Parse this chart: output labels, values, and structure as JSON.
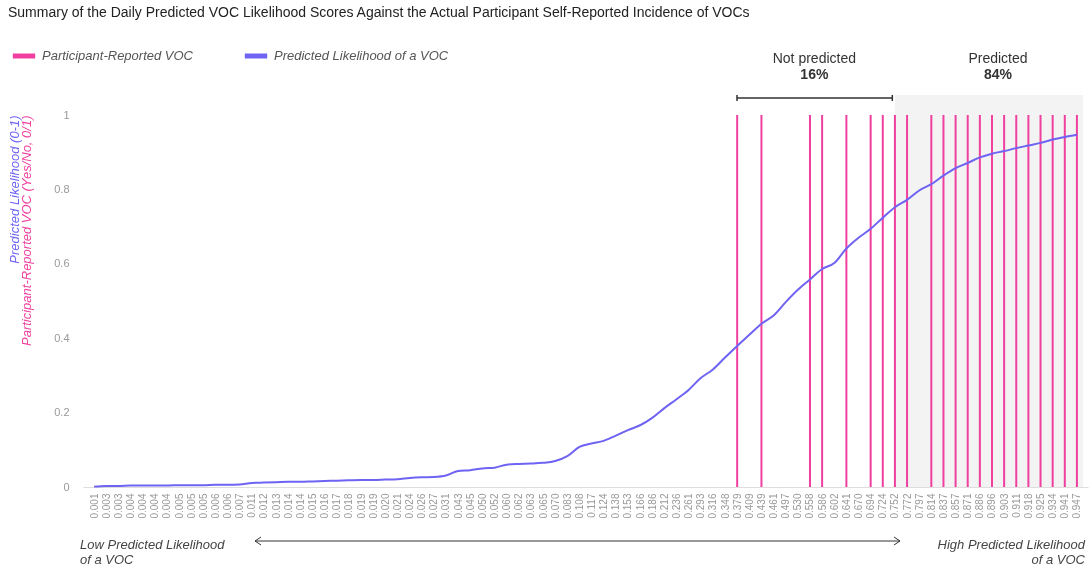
{
  "chart_data": {
    "type": "line",
    "title": "Summary of the Daily Predicted VOC Likelihood Scores Against the Actual Participant Self-Reported Incidence of VOCs",
    "ylabel": "Predicted Likelihood (0-1)",
    "y2label": "Participant-Reported VOC (Yes/No, 0/1)",
    "categories": [
      "0.001",
      "0.003",
      "0.003",
      "0.004",
      "0.004",
      "0.004",
      "0.004",
      "0.005",
      "0.005",
      "0.005",
      "0.006",
      "0.006",
      "0.007",
      "0.011",
      "0.012",
      "0.013",
      "0.014",
      "0.014",
      "0.015",
      "0.016",
      "0.017",
      "0.018",
      "0.019",
      "0.019",
      "0.020",
      "0.021",
      "0.024",
      "0.026",
      "0.027",
      "0.031",
      "0.043",
      "0.045",
      "0.050",
      "0.052",
      "0.060",
      "0.062",
      "0.063",
      "0.065",
      "0.070",
      "0.083",
      "0.108",
      "0.117",
      "0.124",
      "0.138",
      "0.153",
      "0.166",
      "0.186",
      "0.212",
      "0.236",
      "0.261",
      "0.293",
      "0.316",
      "0.348",
      "0.379",
      "0.409",
      "0.439",
      "0.461",
      "0.497",
      "0.530",
      "0.558",
      "0.586",
      "0.602",
      "0.641",
      "0.670",
      "0.694",
      "0.724",
      "0.752",
      "0.772",
      "0.797",
      "0.814",
      "0.837",
      "0.857",
      "0.871",
      "0.886",
      "0.896",
      "0.903",
      "0.911",
      "0.918",
      "0.925",
      "0.934",
      "0.941",
      "0.947"
    ],
    "series": [
      {
        "name": "Participant-Reported VOC",
        "type": "bar",
        "color": "#f0409f",
        "values": [
          null,
          null,
          null,
          null,
          null,
          null,
          null,
          null,
          null,
          null,
          null,
          null,
          null,
          null,
          null,
          null,
          null,
          null,
          null,
          null,
          null,
          null,
          null,
          null,
          null,
          null,
          null,
          null,
          null,
          null,
          null,
          null,
          null,
          null,
          null,
          null,
          null,
          null,
          null,
          null,
          null,
          null,
          null,
          null,
          null,
          null,
          null,
          null,
          null,
          null,
          null,
          null,
          null,
          1,
          null,
          1,
          null,
          null,
          null,
          1,
          1,
          null,
          1,
          null,
          1,
          1,
          1,
          1,
          null,
          1,
          1,
          1,
          1,
          1,
          1,
          1,
          1,
          1,
          1,
          1,
          1,
          1
        ]
      },
      {
        "name": "Predicted Likelihood of a VOC",
        "color": "#6e63f2",
        "values": [
          0.001,
          0.003,
          0.003,
          0.004,
          0.004,
          0.004,
          0.004,
          0.005,
          0.005,
          0.005,
          0.006,
          0.006,
          0.007,
          0.011,
          0.012,
          0.013,
          0.014,
          0.014,
          0.015,
          0.016,
          0.017,
          0.018,
          0.019,
          0.019,
          0.02,
          0.021,
          0.024,
          0.026,
          0.027,
          0.031,
          0.043,
          0.045,
          0.05,
          0.052,
          0.06,
          0.062,
          0.063,
          0.065,
          0.07,
          0.083,
          0.108,
          0.117,
          0.124,
          0.138,
          0.153,
          0.166,
          0.186,
          0.212,
          0.236,
          0.261,
          0.293,
          0.316,
          0.348,
          0.379,
          0.409,
          0.439,
          0.461,
          0.497,
          0.53,
          0.558,
          0.586,
          0.602,
          0.641,
          0.67,
          0.694,
          0.724,
          0.752,
          0.772,
          0.797,
          0.814,
          0.837,
          0.857,
          0.871,
          0.886,
          0.896,
          0.903,
          0.911,
          0.918,
          0.925,
          0.934,
          0.941,
          0.947
        ]
      }
    ],
    "ylim": [
      0,
      1
    ],
    "yticks": [
      0,
      0.2,
      0.4,
      0.6,
      0.8,
      1
    ],
    "bands": [
      {
        "axis": "x",
        "from": "0.752",
        "to": "0.947",
        "color": "#f3f3f3"
      }
    ],
    "annotations": [
      "Not predicted",
      "16%",
      "Predicted",
      "84%",
      "Low Predicted Likelihood of a VOC",
      "High Predicted Likelihood of a VOC"
    ],
    "legend": "top left",
    "grid": false
  }
}
